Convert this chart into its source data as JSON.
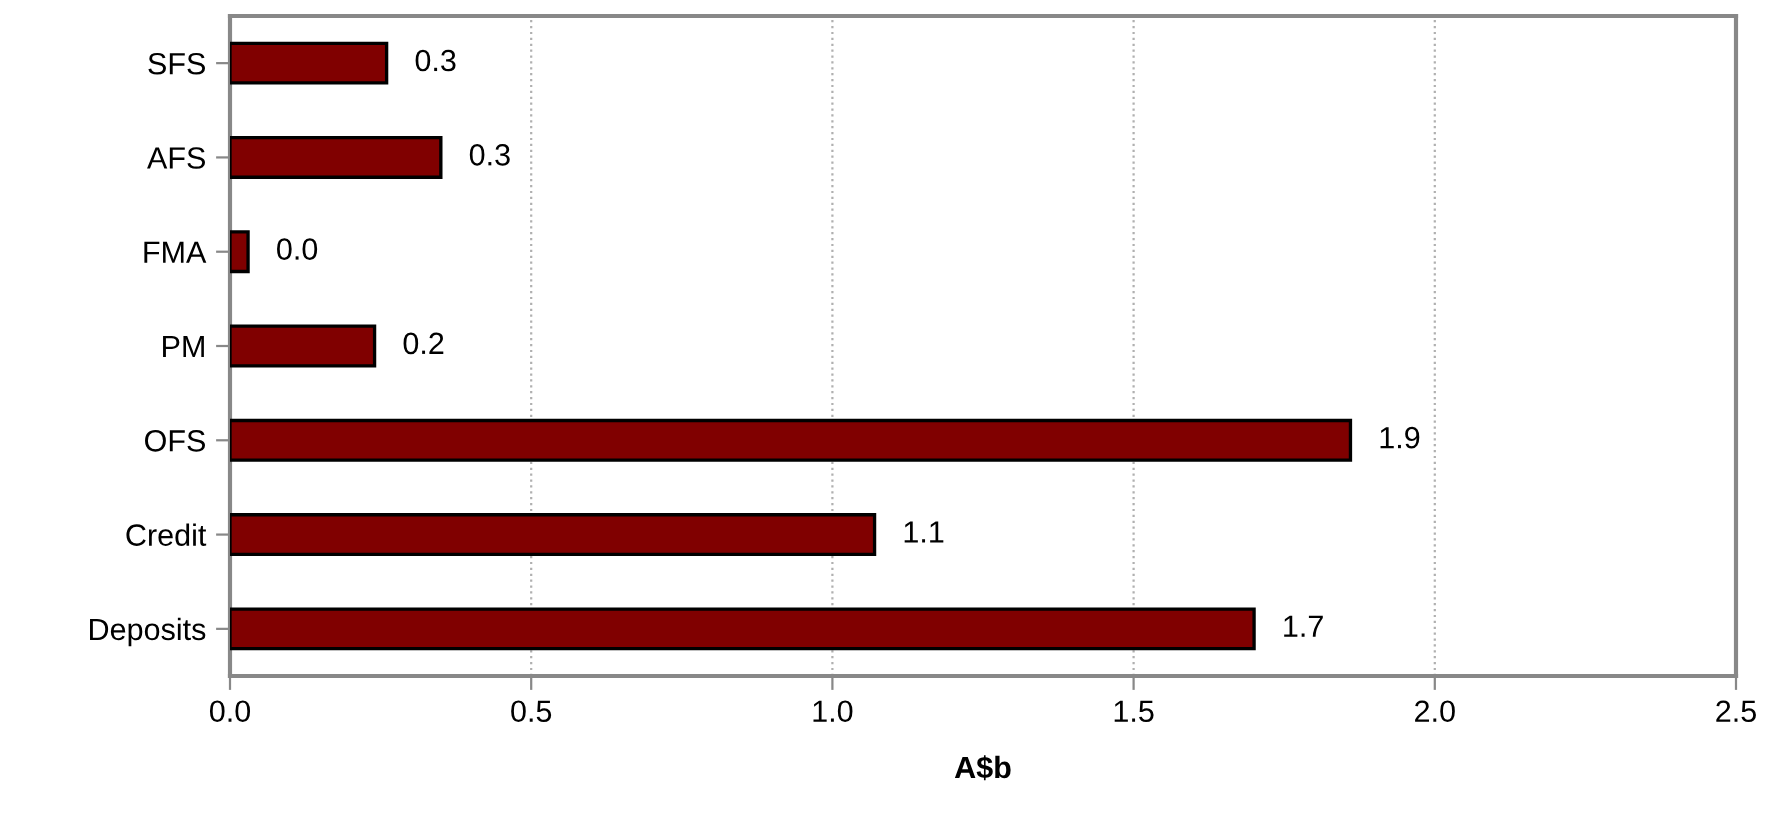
{
  "chart_data": {
    "type": "bar",
    "orientation": "horizontal",
    "xlabel": "A$b",
    "categories": [
      "SFS",
      "AFS",
      "FMA",
      "PM",
      "OFS",
      "Credit",
      "Deposits"
    ],
    "values": [
      0.26,
      0.35,
      0.03,
      0.24,
      1.86,
      1.07,
      1.7
    ],
    "value_labels": [
      "0.3",
      "0.3",
      "0.0",
      "0.2",
      "1.9",
      "1.1",
      "1.7"
    ],
    "color": "#800000",
    "xlim": [
      0,
      2.5
    ],
    "xticks": [
      "0.0",
      "0.5",
      "1.0",
      "1.5",
      "2.0",
      "2.5"
    ],
    "grid": "x"
  }
}
